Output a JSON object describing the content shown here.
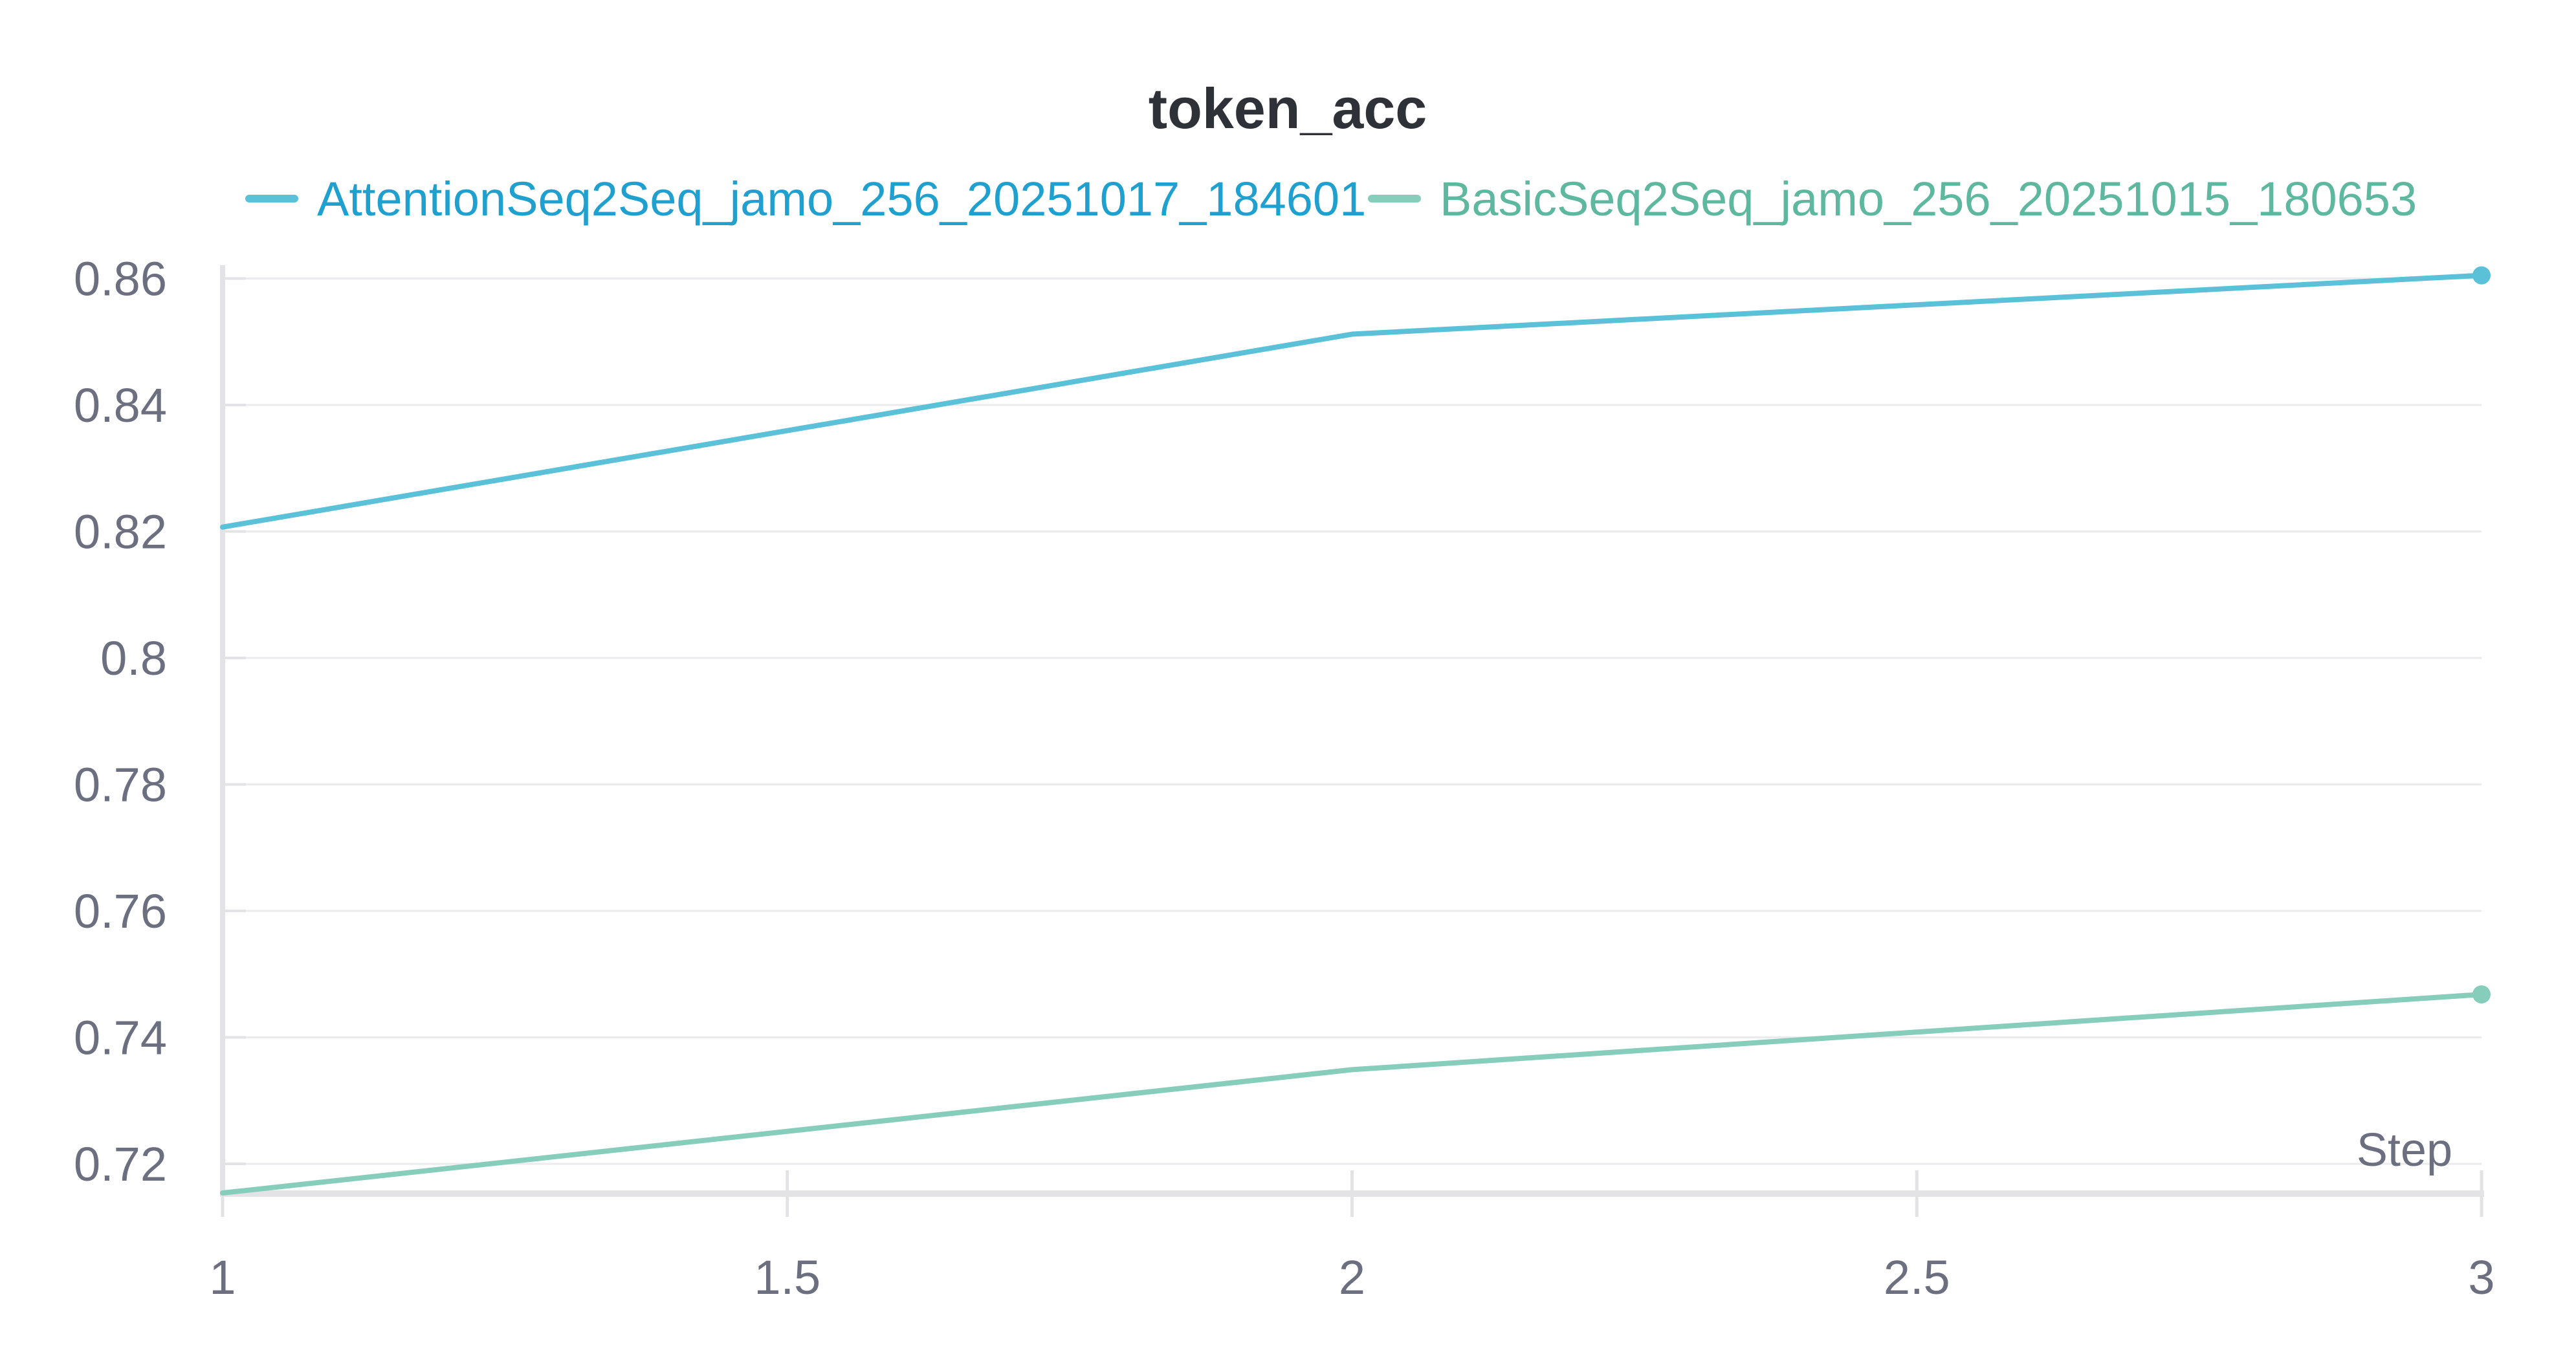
{
  "chart_data": {
    "type": "line",
    "title": "token_acc",
    "xlabel": "Step",
    "ylabel": "",
    "x": [
      1,
      2,
      3
    ],
    "xlim": [
      1,
      3
    ],
    "ylim": [
      0.7153,
      0.8621
    ],
    "x_ticks": [
      {
        "value": 1,
        "label": "1"
      },
      {
        "value": 1.5,
        "label": "1.5"
      },
      {
        "value": 2,
        "label": "2"
      },
      {
        "value": 2.5,
        "label": "2.5"
      },
      {
        "value": 3,
        "label": "3"
      }
    ],
    "y_ticks": [
      {
        "value": 0.72,
        "label": "0.72"
      },
      {
        "value": 0.74,
        "label": "0.74"
      },
      {
        "value": 0.76,
        "label": "0.76"
      },
      {
        "value": 0.78,
        "label": "0.78"
      },
      {
        "value": 0.8,
        "label": "0.8"
      },
      {
        "value": 0.82,
        "label": "0.82"
      },
      {
        "value": 0.84,
        "label": "0.84"
      },
      {
        "value": 0.86,
        "label": "0.86"
      }
    ],
    "grid": true,
    "legend_position": "top",
    "series": [
      {
        "name": "AttentionSeq2Seq_jamo_256_20251017_184601",
        "color": "#5bc1d9",
        "legend_text_color": "#1fa0cf",
        "values": [
          0.8207,
          0.8512,
          0.8605
        ]
      },
      {
        "name": "BasicSeq2Seq_jamo_256_20251015_180653",
        "color": "#87cdbb",
        "legend_text_color": "#5eb89f",
        "values": [
          0.7154,
          0.7349,
          0.7468
        ]
      }
    ]
  },
  "colors": {
    "axis": "#e3e3e6",
    "grid": "#ebebee",
    "tick_text": "#6b6f80",
    "title_text": "#2f3138"
  }
}
